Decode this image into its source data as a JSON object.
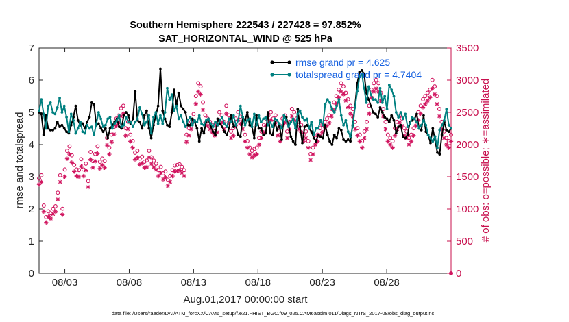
{
  "chart_data": {
    "type": "line",
    "title": "Southern Hemisphere 222543 / 227428 = 97.852%",
    "subtitle": "SAT_HORIZONTAL_WIND @ 525 hPa",
    "xlabel": "Aug.01,2017 00:00:00 start",
    "ylabel_left": "rmse and totalspread",
    "ylabel_right": "# of obs: o=possible; ∗=assimilated",
    "footnote": "data file: /Users/raeder/DAI/ATM_forcXX/CAM6_setup/f.e21.FHIST_BGC.f09_025.CAM6assim.011/Diags_NTrS_2017-08/obs_diag_output.nc",
    "xlim": [
      1,
      33
    ],
    "ylim_left": [
      0,
      7
    ],
    "ylim_right": [
      0,
      3500
    ],
    "x_ticks": [
      3,
      8,
      13,
      18,
      23,
      28
    ],
    "x_tick_labels": [
      "08/03",
      "08/08",
      "08/13",
      "08/18",
      "08/23",
      "08/28"
    ],
    "y_ticks_left": [
      "0",
      "1",
      "2",
      "3",
      "4",
      "5",
      "6",
      "7"
    ],
    "y_ticks_right": [
      "0",
      "500",
      "1000",
      "1500",
      "2000",
      "2500",
      "3000",
      "3500"
    ],
    "legend_position": "top-right",
    "series": [
      {
        "name": "rmse grand pr = 4.625",
        "axis": "left",
        "color": "#000000",
        "values": [
          5.0,
          4.95,
          4.3,
          4.9,
          4.5,
          4.45,
          4.45,
          4.5,
          4.7,
          4.55,
          4.6,
          4.5,
          4.4,
          4.35,
          4.6,
          4.85,
          5.2,
          4.75,
          4.6,
          4.65,
          4.5,
          4.7,
          4.85,
          5.3,
          5.25,
          4.6,
          4.65,
          4.5,
          4.4,
          4.5,
          4.2,
          4.5,
          4.6,
          4.7,
          4.8,
          4.55,
          4.5,
          4.9,
          5.0,
          4.9,
          4.65,
          4.8,
          5.65,
          4.75,
          4.7,
          4.5,
          4.9,
          5.05,
          4.5,
          4.2,
          4.6,
          4.9,
          5.2,
          6.35,
          5.05,
          4.8,
          4.6,
          4.55,
          5.0,
          5.7,
          5.25,
          5.6,
          5.2,
          5.1,
          5.0,
          4.6,
          4.6,
          4.8,
          4.7,
          4.5,
          4.1,
          4.5,
          4.35,
          4.7,
          4.8,
          4.55,
          4.4,
          4.3,
          4.8,
          4.65,
          4.55,
          4.4,
          4.3,
          4.5,
          4.9,
          4.55,
          4.6,
          4.3,
          4.25,
          4.85,
          4.75,
          5.0,
          4.6,
          4.55,
          4.2,
          4.9,
          4.5,
          4.5,
          4.3,
          4.35,
          5.0,
          4.35,
          4.3,
          4.7,
          4.45,
          4.6,
          4.15,
          4.9,
          4.85,
          4.6,
          4.25,
          4.1,
          4.0,
          5.1,
          4.55,
          4.05,
          4.55,
          4.6,
          4.5,
          4.4,
          4.2,
          4.1,
          4.3,
          4.25,
          4.2,
          4.6,
          4.3,
          4.1,
          4.0,
          4.3,
          4.2,
          4.5,
          4.45,
          4.15,
          4.1,
          4.15,
          4.1,
          4.6,
          5.2,
          5.9,
          6.25,
          6.3,
          6.2,
          5.6,
          5.4,
          5.2,
          5.0,
          4.95,
          4.85,
          5.15,
          5.0,
          4.85,
          4.8,
          4.7,
          4.9,
          4.75,
          4.35,
          4.55,
          4.6,
          4.25,
          4.2,
          4.3,
          4.7,
          4.75,
          4.8,
          4.95,
          4.5,
          4.45,
          4.9,
          4.4,
          4.3,
          4.05,
          4.5,
          4.15,
          3.75,
          3.7,
          4.3,
          4.7,
          4.45,
          4.4,
          4.5
        ]
      },
      {
        "name": "totalspread grand pr = 4.7404",
        "axis": "left",
        "color": "#008080",
        "values": [
          5.05,
          5.4,
          4.95,
          4.5,
          5.2,
          5.3,
          5.0,
          4.95,
          5.15,
          5.45,
          5.0,
          5.2,
          4.85,
          4.4,
          4.95,
          4.75,
          4.35,
          4.5,
          4.7,
          4.4,
          4.35,
          4.6,
          4.5,
          4.55,
          4.3,
          4.65,
          5.0,
          4.8,
          4.55,
          4.6,
          4.8,
          4.85,
          4.5,
          4.65,
          4.75,
          4.9,
          4.55,
          4.6,
          4.85,
          4.7,
          4.7,
          4.55,
          4.7,
          4.8,
          5.15,
          4.95,
          4.6,
          4.7,
          4.9,
          4.35,
          4.85,
          5.0,
          4.65,
          4.9,
          4.65,
          5.0,
          5.75,
          5.4,
          5.55,
          5.05,
          5.2,
          4.8,
          4.9,
          4.7,
          4.55,
          4.75,
          4.85,
          4.6,
          4.75,
          4.7,
          4.9,
          4.65,
          4.6,
          4.75,
          4.8,
          4.65,
          4.55,
          4.7,
          4.6,
          4.75,
          4.85,
          4.65,
          4.55,
          4.8,
          4.7,
          4.9,
          4.6,
          4.75,
          5.2,
          4.85,
          4.6,
          4.75,
          4.8,
          4.55,
          4.95,
          4.6,
          4.9,
          4.7,
          4.8,
          4.85,
          4.6,
          4.7,
          4.55,
          4.8,
          4.75,
          4.65,
          4.5,
          4.9,
          4.75,
          4.55,
          4.7,
          4.8,
          4.5,
          4.95,
          5.05,
          4.85,
          4.75,
          4.8,
          4.5,
          4.7,
          4.3,
          4.5,
          4.5,
          4.75,
          4.6,
          5.25,
          5.4,
          5.3,
          5.1,
          5.0,
          5.2,
          5.4,
          4.9,
          4.6,
          4.75,
          4.4,
          4.25,
          4.55,
          5.15,
          5.65,
          6.1,
          6.2,
          5.75,
          5.3,
          5.8,
          5.55,
          5.4,
          5.4,
          5.3,
          5.75,
          5.3,
          5.5,
          5.1,
          5.85,
          5.7,
          5.5,
          5.0,
          4.85,
          5.0,
          4.8,
          4.95,
          4.55,
          4.65,
          4.85,
          4.8,
          4.7,
          4.5,
          4.6,
          4.75,
          4.6,
          4.3,
          4.2,
          4.1,
          4.25,
          3.9,
          4.45,
          4.6,
          4.75,
          5.1,
          4.6,
          4.5
        ]
      },
      {
        "name": "possible",
        "axis": "right",
        "color": "#d11660",
        "marker": "o",
        "values": [
          1420,
          1470,
          1000,
          820,
          910,
          880,
          950,
          990,
          1200,
          1470,
          950,
          1560,
          1850,
          1920,
          1780,
          1630,
          1560,
          1550,
          1720,
          1560,
          1650,
          1380,
          1830,
          1690,
          1800,
          1920,
          1680,
          1730,
          1690,
          2050,
          1900,
          2100,
          2220,
          2350,
          2400,
          2510,
          2550,
          2200,
          2300,
          2100,
          2000,
          1820,
          1850,
          1730,
          1760,
          1680,
          1700,
          1850,
          1750,
          1700,
          1650,
          1550,
          1600,
          1500,
          1530,
          1400,
          1460,
          1550,
          1620,
          1630,
          1640,
          1600,
          1550,
          2100,
          2200,
          2300,
          2420,
          2700,
          2900,
          2850,
          2600,
          2400,
          2350,
          2300,
          2250,
          2200,
          2250,
          2450,
          2400,
          2300,
          2550,
          2400,
          2150,
          2200,
          2350,
          2450,
          2380,
          2300,
          2100,
          2000,
          1900,
          1850,
          1880,
          1900,
          2050,
          2150,
          2250,
          2350,
          2400,
          2450,
          2350,
          2400,
          2200,
          2100,
          2350,
          2400,
          2150,
          2300,
          2500,
          2450,
          2350,
          2300,
          2250,
          2100,
          2150,
          2000,
          1800,
          1900,
          2050,
          2100,
          2200,
          2250,
          2300,
          2350,
          2400,
          2500,
          2600,
          2700,
          2800,
          2900,
          2850,
          2750,
          2650,
          2550,
          2500,
          2300,
          2200,
          2100,
          2000,
          2150,
          2300,
          2550,
          2800,
          2900,
          2950,
          2900,
          2750,
          2500,
          2300,
          2100,
          2050,
          2000,
          2200,
          2300,
          2400,
          2350,
          2200,
          2150,
          2050,
          2100,
          2200,
          2350,
          2450,
          2550,
          2650,
          2700,
          2750,
          2800,
          2950,
          2850,
          2700,
          2500,
          2300,
          2150,
          2050,
          2000,
          2100
        ]
      },
      {
        "name": "assimilated",
        "axis": "right",
        "color": "#d11660",
        "marker": "*",
        "values": [
          1380,
          1420,
          960,
          790,
          880,
          850,
          920,
          960,
          1150,
          1420,
          910,
          1500,
          1780,
          1850,
          1720,
          1580,
          1510,
          1500,
          1660,
          1510,
          1600,
          1340,
          1770,
          1640,
          1740,
          1860,
          1630,
          1680,
          1640,
          1990,
          1850,
          2040,
          2160,
          2290,
          2340,
          2440,
          2480,
          2140,
          2240,
          2050,
          1950,
          1770,
          1800,
          1690,
          1710,
          1640,
          1650,
          1800,
          1700,
          1650,
          1610,
          1510,
          1560,
          1460,
          1490,
          1360,
          1420,
          1510,
          1580,
          1590,
          1600,
          1560,
          1510,
          2040,
          2140,
          2240,
          2360,
          2630,
          2820,
          2780,
          2540,
          2340,
          2290,
          2240,
          2190,
          2140,
          2190,
          2380,
          2340,
          2240,
          2480,
          2340,
          2100,
          2140,
          2290,
          2380,
          2320,
          2240,
          2050,
          1950,
          1850,
          1800,
          1830,
          1850,
          2000,
          2100,
          2190,
          2290,
          2340,
          2380,
          2290,
          2340,
          2140,
          2050,
          2290,
          2340,
          2100,
          2240,
          2440,
          2380,
          2290,
          2240,
          2190,
          2050,
          2100,
          1950,
          1760,
          1850,
          2000,
          2050,
          2140,
          2190,
          2240,
          2290,
          2340,
          2440,
          2530,
          2630,
          2730,
          2820,
          2780,
          2680,
          2580,
          2480,
          2440,
          2240,
          2140,
          2050,
          1950,
          2100,
          2240,
          2480,
          2730,
          2820,
          2870,
          2820,
          2680,
          2440,
          2240,
          2050,
          2000,
          1950,
          2140,
          2240,
          2340,
          2290,
          2140,
          2100,
          2000,
          2050,
          2140,
          2290,
          2380,
          2480,
          2580,
          2630,
          2680,
          2730,
          2870,
          2780,
          2630,
          2440,
          2240,
          2100,
          2000,
          1950,
          2050
        ]
      }
    ]
  }
}
